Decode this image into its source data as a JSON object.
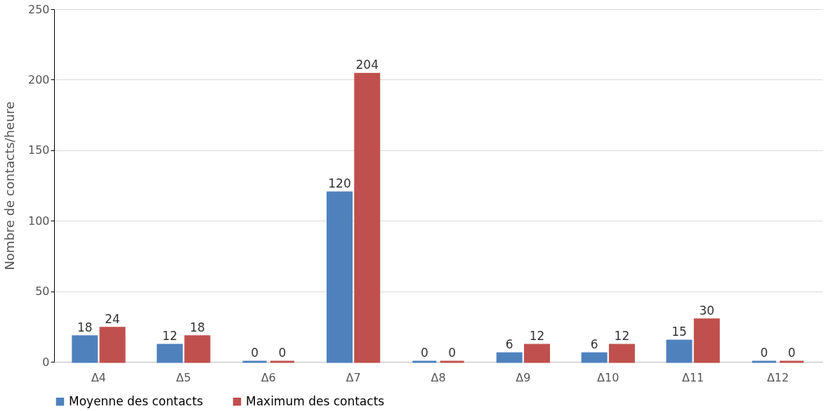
{
  "chart_data": {
    "type": "bar",
    "ylabel": "Nombre de contacts/heure",
    "categories": [
      "Δ4",
      "Δ5",
      "Δ6",
      "Δ7",
      "Δ8",
      "Δ9",
      "Δ10",
      "Δ11",
      "Δ12"
    ],
    "series": [
      {
        "name": "Moyenne des contacts",
        "color": "#4f81bd",
        "values": [
          18,
          12,
          0,
          120,
          0,
          6,
          6,
          15,
          0
        ]
      },
      {
        "name": "Maximum des contacts",
        "color": "#c0504d",
        "values": [
          24,
          18,
          0,
          204,
          0,
          12,
          12,
          30,
          0
        ]
      }
    ],
    "ylim": [
      0,
      250
    ],
    "yticks": [
      0,
      50,
      100,
      150,
      200,
      250
    ],
    "grid": "y",
    "legend": "bottom",
    "data_labels": true
  }
}
